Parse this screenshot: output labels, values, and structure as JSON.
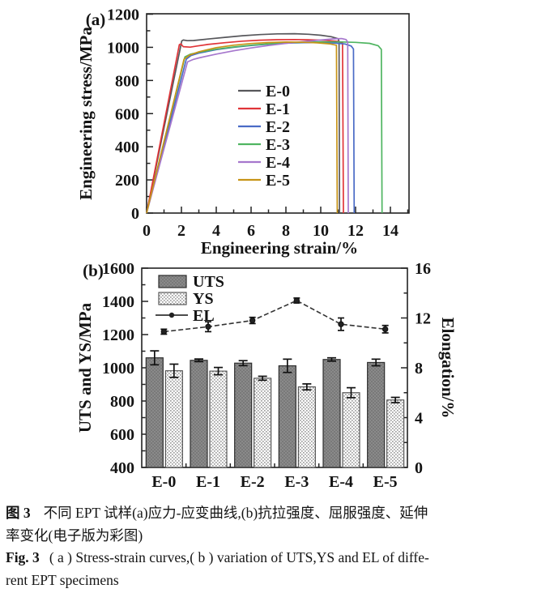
{
  "figure": {
    "panel_a_label": "(a)",
    "panel_b_label": "(b)"
  },
  "caption": {
    "zh_label": "图 3",
    "zh_line1": "不同 EPT 试样(a)应力-应变曲线,(b)抗拉强度、屈服强度、延伸",
    "zh_line2": "率变化(电子版为彩图)",
    "en_label": "Fig. 3",
    "en_line1": "( a ) Stress-strain curves,( b ) variation of UTS,YS and EL of diffe-",
    "en_line2": "rent EPT specimens"
  },
  "chart_data": [
    {
      "id": "stress_strain",
      "type": "line",
      "xlabel": "Engineering strain/%",
      "ylabel": "Engineering stress/MPa",
      "xlim": [
        0,
        15.1
      ],
      "ylim": [
        0,
        1200
      ],
      "xticks": [
        0,
        2,
        4,
        6,
        8,
        10,
        12,
        14
      ],
      "xminorticks": [
        1,
        3,
        5,
        7,
        9,
        11,
        13,
        15
      ],
      "yticks": [
        0,
        200,
        400,
        600,
        800,
        1000,
        1200
      ],
      "yminorticks": [
        100,
        300,
        500,
        700,
        900,
        1100
      ],
      "grid": false,
      "legend_position": "center-left",
      "series": [
        {
          "name": "E-0",
          "color": "#57575b",
          "points": [
            [
              0,
              0
            ],
            [
              2.02,
              1038
            ],
            [
              2.1,
              1044
            ],
            [
              2.35,
              1040
            ],
            [
              2.7,
              1041
            ],
            [
              3.5,
              1050
            ],
            [
              4.5,
              1060
            ],
            [
              5.5,
              1070
            ],
            [
              6.5,
              1077
            ],
            [
              7.5,
              1081
            ],
            [
              8.5,
              1082
            ],
            [
              9.3,
              1079
            ],
            [
              10,
              1073
            ],
            [
              10.6,
              1064
            ],
            [
              11,
              1052
            ],
            [
              11.05,
              1035
            ],
            [
              11.08,
              0
            ]
          ]
        },
        {
          "name": "E-1",
          "color": "#e03438",
          "points": [
            [
              0,
              0
            ],
            [
              1.88,
              1016
            ],
            [
              1.97,
              1021
            ],
            [
              2.1,
              1004
            ],
            [
              2.5,
              1001
            ],
            [
              2.9,
              1008
            ],
            [
              3.5,
              1017
            ],
            [
              4.5,
              1028
            ],
            [
              5.5,
              1037
            ],
            [
              6.5,
              1043
            ],
            [
              7.5,
              1046
            ],
            [
              8.5,
              1047
            ],
            [
              9.5,
              1045
            ],
            [
              10.3,
              1042
            ],
            [
              11,
              1036
            ],
            [
              11.25,
              1026
            ],
            [
              11.3,
              0
            ]
          ]
        },
        {
          "name": "E-2",
          "color": "#4a6bc6",
          "points": [
            [
              0,
              0
            ],
            [
              2.28,
              928
            ],
            [
              2.55,
              950
            ],
            [
              3,
              965
            ],
            [
              4,
              986
            ],
            [
              5,
              1000
            ],
            [
              6,
              1011
            ],
            [
              7,
              1019
            ],
            [
              8,
              1025
            ],
            [
              9,
              1028
            ],
            [
              10,
              1028
            ],
            [
              10.8,
              1026
            ],
            [
              11.4,
              1020
            ],
            [
              11.75,
              1008
            ],
            [
              11.88,
              990
            ],
            [
              11.92,
              0
            ]
          ]
        },
        {
          "name": "E-3",
          "color": "#4fb561",
          "points": [
            [
              0,
              0
            ],
            [
              2.2,
              942
            ],
            [
              2.5,
              958
            ],
            [
              3,
              970
            ],
            [
              4,
              989
            ],
            [
              5,
              1002
            ],
            [
              6,
              1013
            ],
            [
              7,
              1021
            ],
            [
              8,
              1027
            ],
            [
              9,
              1031
            ],
            [
              10,
              1033
            ],
            [
              11,
              1033
            ],
            [
              12,
              1030
            ],
            [
              12.8,
              1024
            ],
            [
              13.3,
              1010
            ],
            [
              13.48,
              988
            ],
            [
              13.52,
              0
            ]
          ]
        },
        {
          "name": "E-4",
          "color": "#a677cd",
          "points": [
            [
              0,
              0
            ],
            [
              2.35,
              912
            ],
            [
              2.65,
              926
            ],
            [
              3,
              936
            ],
            [
              4,
              959
            ],
            [
              5,
              979
            ],
            [
              6,
              996
            ],
            [
              7,
              1011
            ],
            [
              8,
              1024
            ],
            [
              9,
              1035
            ],
            [
              10,
              1044
            ],
            [
              10.7,
              1051
            ],
            [
              11.2,
              1053
            ],
            [
              11.45,
              1047
            ],
            [
              11.55,
              1032
            ],
            [
              11.58,
              0
            ]
          ]
        },
        {
          "name": "E-5",
          "color": "#c79418",
          "points": [
            [
              0,
              0
            ],
            [
              2.15,
              928
            ],
            [
              2.45,
              952
            ],
            [
              3,
              973
            ],
            [
              4,
              998
            ],
            [
              5,
              1013
            ],
            [
              6,
              1023
            ],
            [
              7,
              1029
            ],
            [
              8,
              1032
            ],
            [
              9,
              1031
            ],
            [
              9.8,
              1027
            ],
            [
              10.5,
              1021
            ],
            [
              10.9,
              1013
            ],
            [
              10.95,
              0
            ]
          ]
        }
      ]
    },
    {
      "id": "uts_ys_el",
      "type": "bar",
      "categories": [
        "E-0",
        "E-1",
        "E-2",
        "E-3",
        "E-4",
        "E-5"
      ],
      "left_axis": {
        "label": "UTS and YS/MPa",
        "min": 400,
        "max": 1600,
        "ticks": [
          400,
          600,
          800,
          1000,
          1200,
          1400,
          1600
        ],
        "minorticks": [
          500,
          700,
          900,
          1100,
          1300,
          1500
        ]
      },
      "right_axis": {
        "label": "Elongation/%",
        "min": 0,
        "max": 16,
        "ticks": [
          0,
          4,
          8,
          12,
          16
        ],
        "minorticks": [
          2,
          6,
          10,
          14
        ]
      },
      "grid": false,
      "legend_position": "top-left",
      "series": [
        {
          "name": "UTS",
          "type": "bar",
          "style": "solid-gray",
          "values": [
            1060,
            1045,
            1028,
            1012,
            1050,
            1032
          ],
          "errors": [
            42,
            8,
            15,
            40,
            10,
            20
          ]
        },
        {
          "name": "YS",
          "type": "bar",
          "style": "dotted-white",
          "values": [
            982,
            980,
            937,
            885,
            850,
            806
          ],
          "errors": [
            40,
            22,
            12,
            18,
            30,
            16
          ]
        },
        {
          "name": "EL",
          "type": "line",
          "axis": "right",
          "color": "#333333",
          "marker": "filled-circle",
          "values": [
            10.9,
            11.3,
            11.8,
            13.4,
            11.5,
            11.1
          ],
          "errors": [
            0.2,
            0.4,
            0.25,
            0.2,
            0.5,
            0.3
          ]
        }
      ]
    }
  ]
}
